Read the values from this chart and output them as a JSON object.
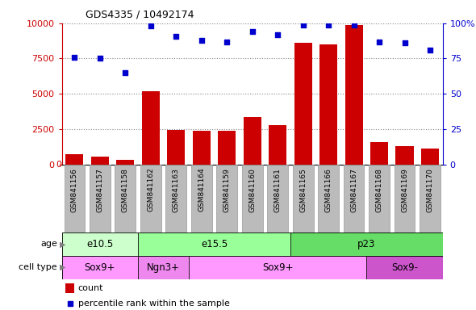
{
  "title": "GDS4335 / 10492174",
  "samples": [
    "GSM841156",
    "GSM841157",
    "GSM841158",
    "GSM841162",
    "GSM841163",
    "GSM841164",
    "GSM841159",
    "GSM841160",
    "GSM841161",
    "GSM841165",
    "GSM841166",
    "GSM841167",
    "GSM841168",
    "GSM841169",
    "GSM841170"
  ],
  "counts": [
    700,
    550,
    300,
    5200,
    2450,
    2400,
    2350,
    3350,
    2800,
    8600,
    8500,
    9900,
    1550,
    1300,
    1100
  ],
  "percentiles": [
    76,
    75,
    65,
    98,
    91,
    88,
    87,
    94,
    92,
    99,
    99,
    99,
    87,
    86,
    81
  ],
  "bar_color": "#cc0000",
  "dot_color": "#0000cc",
  "ylim_left": [
    0,
    10000
  ],
  "ylim_right": [
    0,
    100
  ],
  "yticks_left": [
    0,
    2500,
    5000,
    7500,
    10000
  ],
  "yticks_right": [
    0,
    25,
    50,
    75,
    100
  ],
  "age_groups": [
    {
      "label": "e10.5",
      "start": 0,
      "end": 3,
      "color": "#ccffcc"
    },
    {
      "label": "e15.5",
      "start": 3,
      "end": 9,
      "color": "#99ff99"
    },
    {
      "label": "p23",
      "start": 9,
      "end": 15,
      "color": "#66dd66"
    }
  ],
  "cell_type_groups": [
    {
      "label": "Sox9+",
      "start": 0,
      "end": 3,
      "color": "#ff99ff"
    },
    {
      "label": "Ngn3+",
      "start": 3,
      "end": 5,
      "color": "#ee88ee"
    },
    {
      "label": "Sox9+",
      "start": 5,
      "end": 12,
      "color": "#ff99ff"
    },
    {
      "label": "Sox9-",
      "start": 12,
      "end": 15,
      "color": "#cc55cc"
    }
  ],
  "legend_count_label": "count",
  "legend_pct_label": "percentile rank within the sample",
  "tick_color_left": "#cc0000",
  "tick_color_right": "#0000cc",
  "grid_color": "#888888",
  "bg_color": "#ffffff",
  "xticklabel_bg": "#bbbbbb",
  "xticklabel_border": "#999999"
}
